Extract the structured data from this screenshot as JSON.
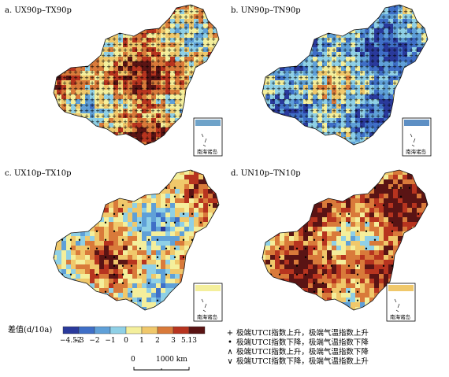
{
  "panels": [
    {
      "id": "a",
      "label": "a. UX90p–TX90p",
      "symbol": "+",
      "hue": 0.6
    },
    {
      "id": "b",
      "label": "b. UN90p–TN90p",
      "symbol": "+",
      "hue": -0.7
    },
    {
      "id": "c",
      "label": "c. UX10p–TX10p",
      "symbol": "•",
      "hue": 0.25
    },
    {
      "id": "d",
      "label": "d. UN10p–TN10p",
      "symbol": "•",
      "hue": 0.95
    }
  ],
  "inset_label": "南海诸岛",
  "legend": {
    "title": "差值(d/10a)",
    "ticks": [
      "−4.52",
      "−3",
      "−2",
      "−1",
      "0",
      "1",
      "2",
      "3",
      "5.13"
    ],
    "colors": [
      "#2a3a9c",
      "#3f6fc7",
      "#5fa0d8",
      "#8fd0e6",
      "#f4ef9c",
      "#f0c86b",
      "#d97a3a",
      "#b7341f",
      "#5a1414"
    ]
  },
  "scale_bar": {
    "zero": "0",
    "length": "1000 km"
  },
  "key": [
    {
      "symbol": "+",
      "text": "极端UTCI指数上升，极端气温指数上升"
    },
    {
      "symbol": "•",
      "text": "极端UTCI指数下降，极端气温指数下降"
    },
    {
      "symbol": "∧",
      "text": "极端UTCI指数上升，极端气温指数下降"
    },
    {
      "symbol": "∨",
      "text": "极端UTCI指数下降，极端气温指数上升"
    }
  ]
}
